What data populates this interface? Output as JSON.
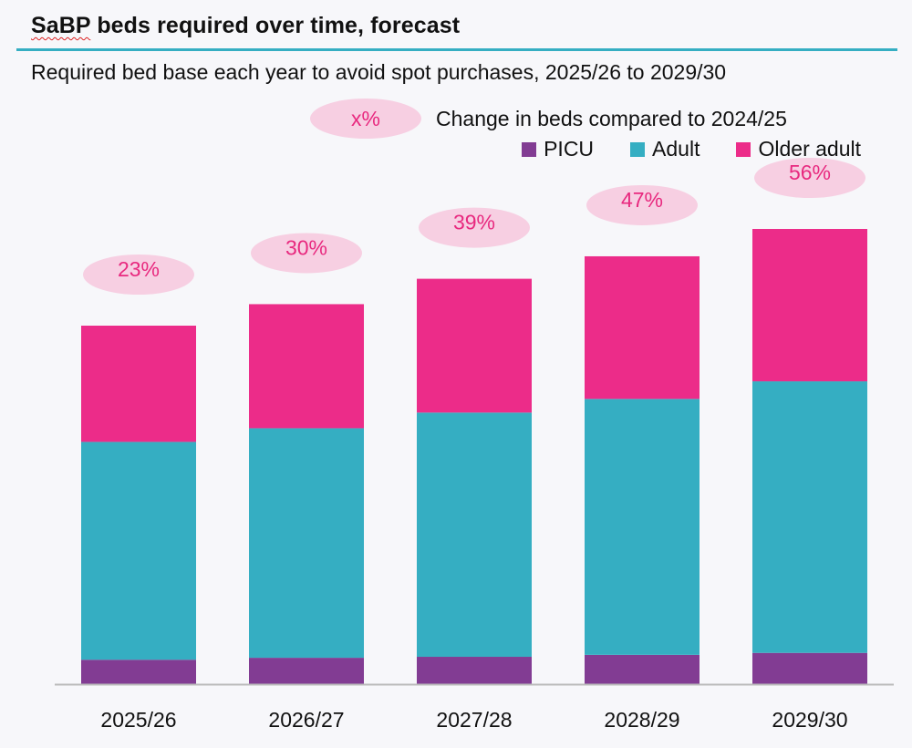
{
  "title_parts": [
    "SaBP",
    "beds required over time, forecast"
  ],
  "subtitle": "Required bed base each year to avoid spot purchases, 2025/26 to 2029/30",
  "legend_change": {
    "pill": "x%",
    "label": "Change in beds compared to 2024/25"
  },
  "colors": {
    "PICU": "#823c93",
    "Adult": "#35aec2",
    "Older adult": "#ec2c89",
    "pill_fill": "#f7cfe2",
    "pill_text": "#e8297f",
    "axis": "#bbbbbb"
  },
  "chart_data": {
    "type": "bar",
    "stacked": true,
    "title": "SaBP beds required over time, forecast",
    "subtitle": "Required bed base each year to avoid spot purchases, 2025/26 to 2029/30",
    "categories": [
      "2025/26",
      "2026/27",
      "2027/28",
      "2028/29",
      "2029/30"
    ],
    "series": [
      {
        "name": "PICU",
        "values": [
          25,
          27,
          28,
          30,
          32
        ]
      },
      {
        "name": "Adult",
        "values": [
          223,
          235,
          250,
          262,
          278
        ]
      },
      {
        "name": "Older adult",
        "values": [
          119,
          127,
          137,
          146,
          156
        ]
      }
    ],
    "annotations": [
      "23%",
      "30%",
      "39%",
      "47%",
      "56%"
    ],
    "annotation_meaning": "Change in beds compared to 2024/25",
    "ylim": [
      0,
      480
    ],
    "grid": false,
    "xlabel": "",
    "ylabel": ""
  }
}
